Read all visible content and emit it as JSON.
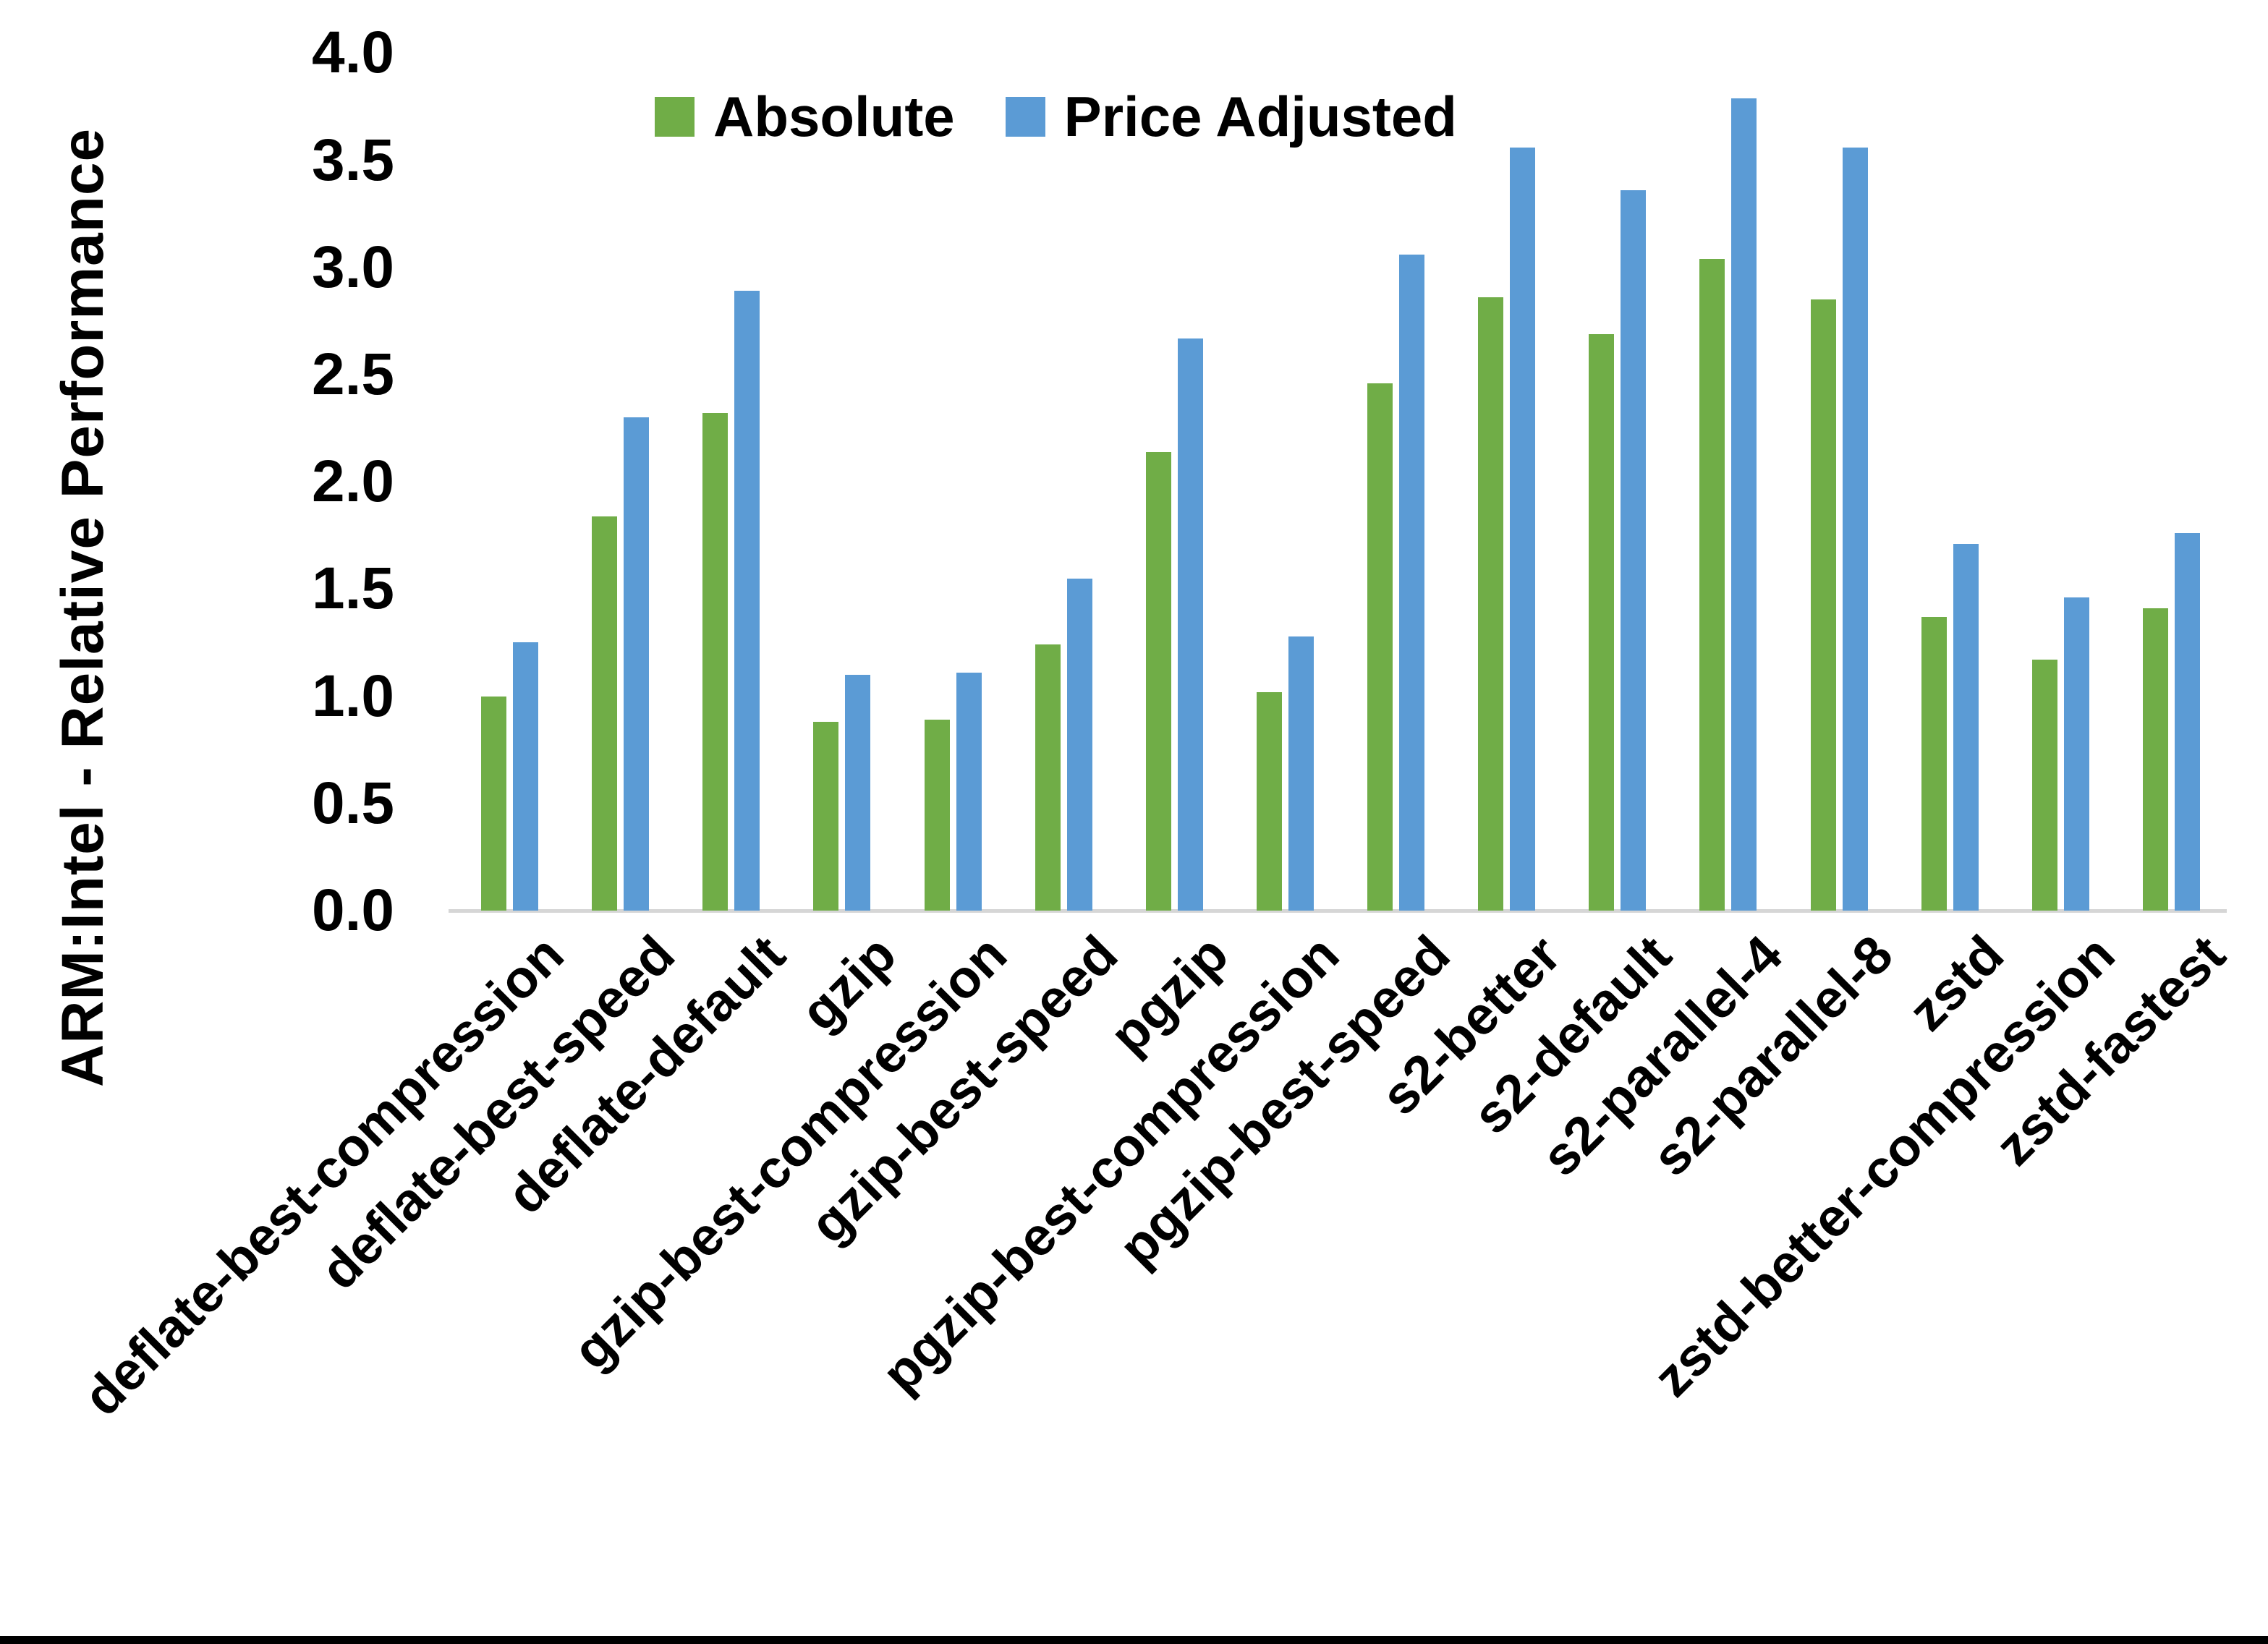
{
  "chart_data": {
    "type": "bar",
    "title": "",
    "ylabel": "ARM:Intel - Relative Performance",
    "xlabel": "",
    "ylim": [
      0,
      4
    ],
    "ytick_interval": 0.5,
    "ytick_labels": [
      "0.0",
      "0.5",
      "1.0",
      "1.5",
      "2.0",
      "2.5",
      "3.0",
      "3.5",
      "4.0"
    ],
    "grid": false,
    "legend_position": "top-center",
    "background_color": "#FFFFFF",
    "axis_line_color": "#D6D6D6",
    "text_color": "#000000",
    "categories": [
      "deflate-best-compression",
      "deflate-best-speed",
      "deflate-default",
      "gzip",
      "gzip-best-compression",
      "gzip-best-speed",
      "pgzip",
      "pgzip-best-compression",
      "pgzip-best-speed",
      "s2-better",
      "s2-default",
      "s2-parallel-4",
      "s2-parallel-8",
      "zstd",
      "zstd-better-compression",
      "zstd-fastest"
    ],
    "series": [
      {
        "name": "Absolute",
        "color": "#70AD47",
        "values": [
          1.0,
          1.84,
          2.32,
          0.88,
          0.89,
          1.24,
          2.14,
          1.02,
          2.46,
          2.86,
          2.69,
          3.04,
          2.85,
          1.37,
          1.17,
          1.41
        ]
      },
      {
        "name": "Price Adjusted",
        "color": "#5B9BD5",
        "values": [
          1.25,
          2.3,
          2.89,
          1.1,
          1.11,
          1.55,
          2.67,
          1.28,
          3.06,
          3.56,
          3.36,
          3.79,
          3.56,
          1.71,
          1.46,
          1.76
        ]
      }
    ]
  },
  "frame": {
    "bottom_border_color": "#000000"
  }
}
